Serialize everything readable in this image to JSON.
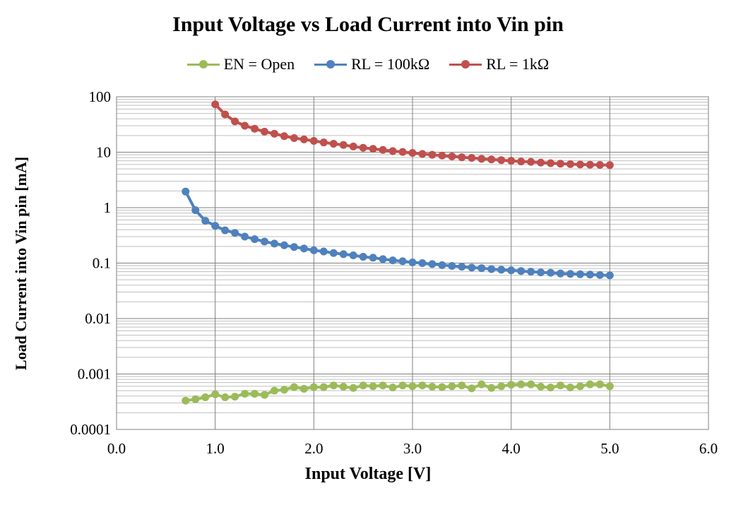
{
  "chart_data": {
    "type": "line",
    "title": "Input Voltage vs Load Current into Vin pin",
    "xlabel": "Input Voltage [V]",
    "ylabel": "Load Current into Vin pin [mA]",
    "xlim": [
      0,
      6
    ],
    "ylim": [
      0.0001,
      100
    ],
    "yscale": "log",
    "x_ticks": [
      "0.0",
      "1.0",
      "2.0",
      "3.0",
      "4.0",
      "5.0",
      "6.0"
    ],
    "y_ticks": [
      "0.0001",
      "0.001",
      "0.01",
      "0.1",
      "1",
      "10",
      "100"
    ],
    "grid": true,
    "legend_position": "top",
    "series": [
      {
        "name": "EN = Open",
        "color": "#9bbb59",
        "x": [
          0.7,
          0.8,
          0.9,
          1.0,
          1.1,
          1.2,
          1.3,
          1.4,
          1.5,
          1.6,
          1.7,
          1.8,
          1.9,
          2.0,
          2.1,
          2.2,
          2.3,
          2.4,
          2.5,
          2.6,
          2.7,
          2.8,
          2.9,
          3.0,
          3.1,
          3.2,
          3.3,
          3.4,
          3.5,
          3.6,
          3.7,
          3.8,
          3.9,
          4.0,
          4.1,
          4.2,
          4.3,
          4.4,
          4.5,
          4.6,
          4.7,
          4.8,
          4.9,
          5.0
        ],
        "values": [
          0.00033,
          0.00035,
          0.00038,
          0.00043,
          0.00038,
          0.00039,
          0.00044,
          0.00044,
          0.00042,
          0.0005,
          0.00052,
          0.00058,
          0.00054,
          0.00058,
          0.00058,
          0.00062,
          0.00059,
          0.00056,
          0.00062,
          0.0006,
          0.00062,
          0.00057,
          0.00062,
          0.0006,
          0.00062,
          0.00059,
          0.00058,
          0.0006,
          0.00062,
          0.00055,
          0.00065,
          0.00056,
          0.0006,
          0.00064,
          0.00065,
          0.00065,
          0.00059,
          0.00057,
          0.00062,
          0.00057,
          0.0006,
          0.00065,
          0.00065,
          0.0006
        ]
      },
      {
        "name": "RL = 100kΩ",
        "color": "#4f81bd",
        "x": [
          0.7,
          0.8,
          0.9,
          1.0,
          1.1,
          1.2,
          1.3,
          1.4,
          1.5,
          1.6,
          1.7,
          1.8,
          1.9,
          2.0,
          2.1,
          2.2,
          2.3,
          2.4,
          2.5,
          2.6,
          2.7,
          2.8,
          2.9,
          3.0,
          3.1,
          3.2,
          3.3,
          3.4,
          3.5,
          3.6,
          3.7,
          3.8,
          3.9,
          4.0,
          4.1,
          4.2,
          4.3,
          4.4,
          4.5,
          4.6,
          4.7,
          4.8,
          4.9,
          5.0
        ],
        "values": [
          1.95,
          0.9,
          0.58,
          0.47,
          0.39,
          0.35,
          0.3,
          0.27,
          0.245,
          0.225,
          0.21,
          0.195,
          0.183,
          0.17,
          0.162,
          0.152,
          0.145,
          0.138,
          0.13,
          0.125,
          0.118,
          0.112,
          0.108,
          0.103,
          0.1,
          0.096,
          0.092,
          0.089,
          0.086,
          0.083,
          0.081,
          0.078,
          0.076,
          0.074,
          0.072,
          0.07,
          0.068,
          0.067,
          0.065,
          0.064,
          0.063,
          0.062,
          0.061,
          0.06
        ]
      },
      {
        "name": "RL = 1kΩ",
        "color": "#c0504d",
        "x": [
          1.0,
          1.1,
          1.2,
          1.3,
          1.4,
          1.5,
          1.6,
          1.7,
          1.8,
          1.9,
          2.0,
          2.1,
          2.2,
          2.3,
          2.4,
          2.5,
          2.6,
          2.7,
          2.8,
          2.9,
          3.0,
          3.1,
          3.2,
          3.3,
          3.4,
          3.5,
          3.6,
          3.7,
          3.8,
          3.9,
          4.0,
          4.1,
          4.2,
          4.3,
          4.4,
          4.5,
          4.6,
          4.7,
          4.8,
          4.9,
          5.0
        ],
        "values": [
          73,
          48,
          36,
          30,
          26.5,
          23.5,
          21.5,
          19.5,
          18,
          17,
          16,
          15,
          14.2,
          13.5,
          12.7,
          12,
          11.5,
          11,
          10.5,
          10.1,
          9.7,
          9.3,
          9.0,
          8.7,
          8.4,
          8.1,
          7.9,
          7.6,
          7.4,
          7.2,
          7.0,
          6.8,
          6.7,
          6.5,
          6.35,
          6.2,
          6.1,
          6.0,
          5.95,
          5.9,
          5.85
        ]
      }
    ]
  }
}
